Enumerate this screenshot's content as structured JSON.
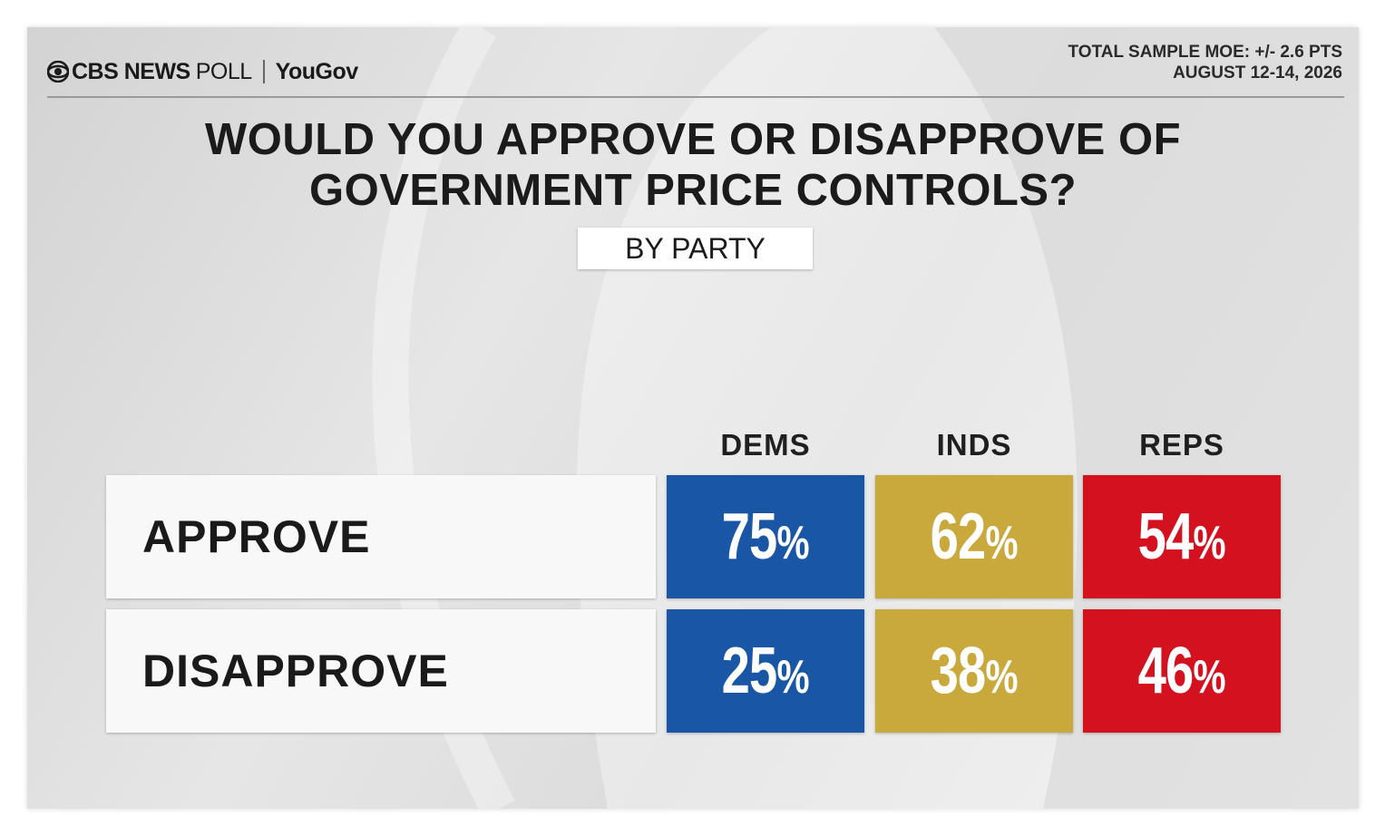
{
  "header": {
    "brand_cbs": "CBS NEWS",
    "brand_poll": "POLL",
    "brand_partner": "YouGov",
    "moe_line1": "TOTAL SAMPLE MOE: +/- 2.6 PTS",
    "moe_line2": "AUGUST 12-14, 2026"
  },
  "chart_data": {
    "type": "table",
    "title_line1": "WOULD YOU APPROVE OR DISAPPROVE OF",
    "title_line2": "GOVERNMENT PRICE CONTROLS?",
    "subtitle": "BY PARTY",
    "columns": [
      "DEMS",
      "INDS",
      "REPS"
    ],
    "rows": [
      {
        "label": "APPROVE",
        "values": [
          75,
          62,
          54
        ],
        "display": [
          "75",
          "62",
          "54"
        ]
      },
      {
        "label": "DISAPPROVE",
        "values": [
          25,
          38,
          46
        ],
        "display": [
          "25",
          "38",
          "46"
        ]
      }
    ],
    "unit": "%",
    "colors": {
      "DEMS": "#1a56a6",
      "INDS": "#c9a83c",
      "REPS": "#d4121f"
    }
  }
}
